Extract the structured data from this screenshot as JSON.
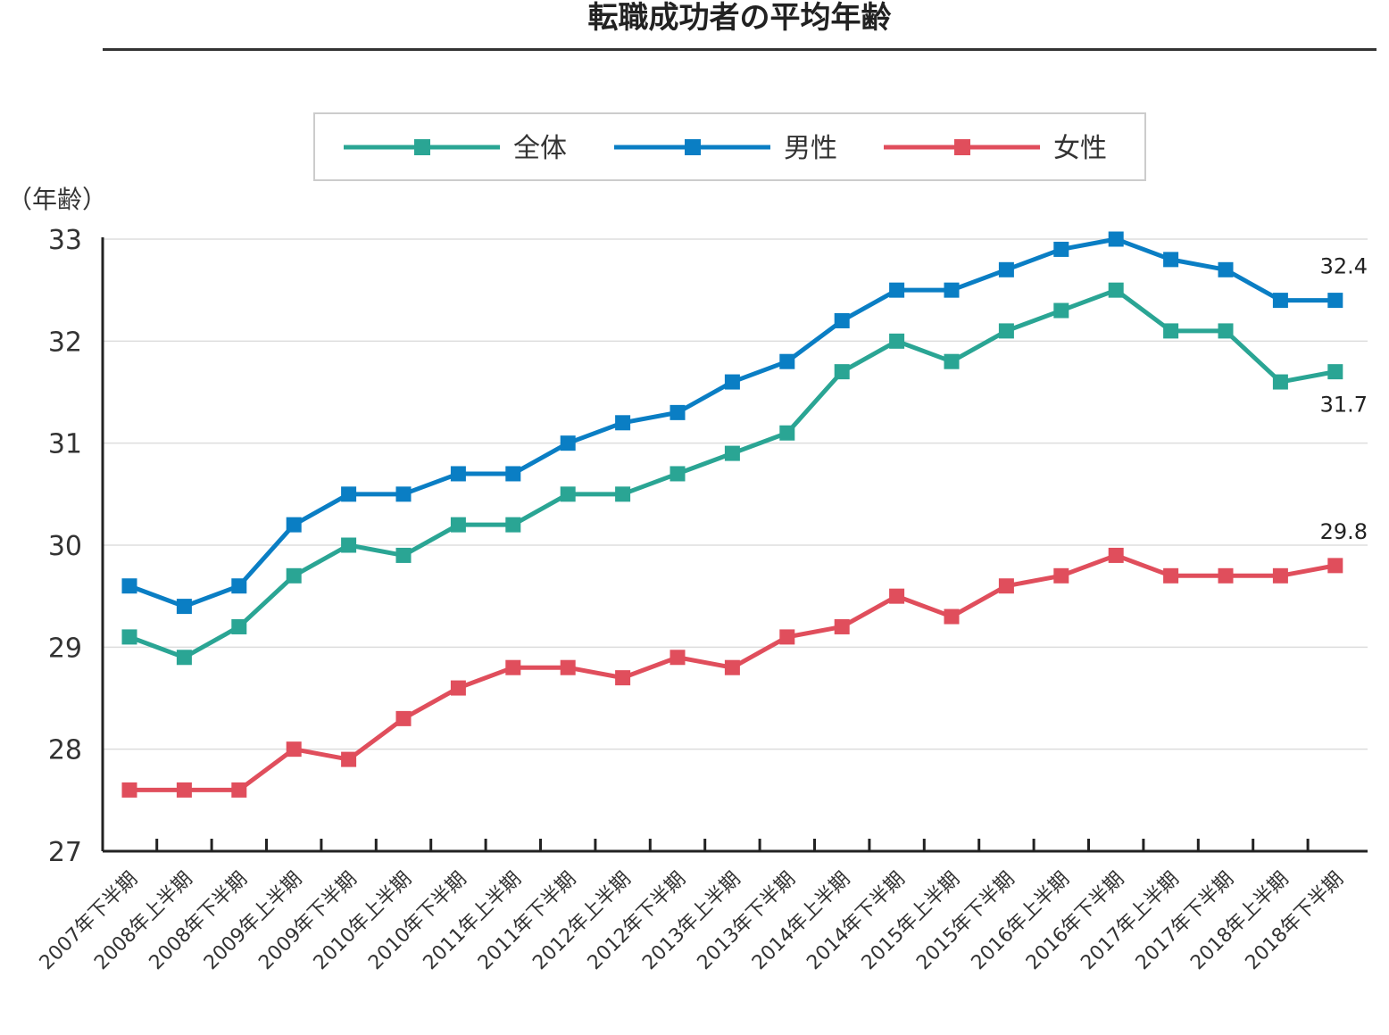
{
  "chart_data": {
    "type": "line",
    "title": "転職成功者の平均年齢",
    "ylabel": "（年齢）",
    "ylim": [
      27,
      33
    ],
    "yticks": [
      "33",
      "32",
      "31",
      "30",
      "29",
      "28",
      "27"
    ],
    "categories": [
      "2007年下半期",
      "2008年上半期",
      "2008年下半期",
      "2009年上半期",
      "2009年下半期",
      "2010年上半期",
      "2010年下半期",
      "2011年上半期",
      "2011年下半期",
      "2012年上半期",
      "2012年下半期",
      "2013年上半期",
      "2013年下半期",
      "2014年上半期",
      "2014年下半期",
      "2015年上半期",
      "2015年下半期",
      "2016年上半期",
      "2016年下半期",
      "2017年上半期",
      "2017年下半期",
      "2018年上半期",
      "2018年下半期"
    ],
    "series": [
      {
        "name": "全体",
        "color": "#2aa594",
        "values": [
          29.1,
          28.9,
          29.2,
          29.7,
          30.0,
          29.9,
          30.2,
          30.2,
          30.5,
          30.5,
          30.7,
          30.9,
          31.1,
          31.7,
          32.0,
          31.8,
          32.1,
          32.3,
          32.5,
          32.1,
          32.1,
          31.6,
          31.7
        ],
        "end_label": "31.7"
      },
      {
        "name": "男性",
        "color": "#0a7ec4",
        "values": [
          29.6,
          29.4,
          29.6,
          30.2,
          30.5,
          30.5,
          30.7,
          30.7,
          31.0,
          31.2,
          31.3,
          31.6,
          31.8,
          32.2,
          32.5,
          32.5,
          32.7,
          32.9,
          33.0,
          32.8,
          32.7,
          32.4,
          32.4
        ],
        "end_label": "32.4"
      },
      {
        "name": "女性",
        "color": "#e04e5c",
        "values": [
          27.6,
          27.6,
          27.6,
          28.0,
          27.9,
          28.3,
          28.6,
          28.8,
          28.8,
          28.7,
          28.9,
          28.8,
          29.1,
          29.2,
          29.5,
          29.3,
          29.6,
          29.7,
          29.9,
          29.7,
          29.7,
          29.7,
          29.8
        ],
        "end_label": "29.8"
      }
    ],
    "grid": true,
    "legend": "top-center"
  }
}
